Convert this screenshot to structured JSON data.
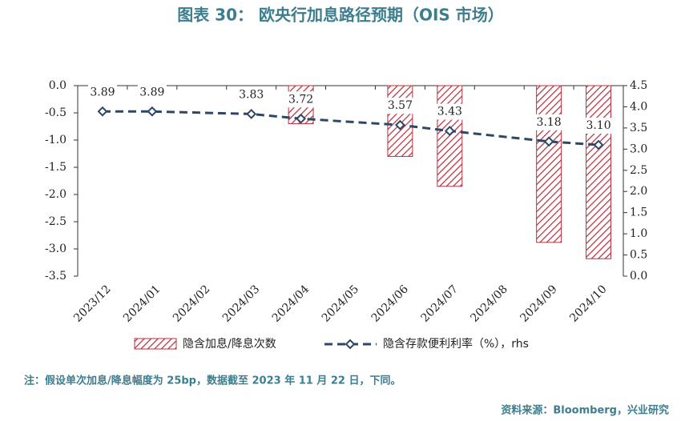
{
  "chart_data": {
    "type": "bar_line",
    "title": "图表 30：  欧央行加息路径预期（OIS 市场）",
    "categories": [
      "2023/12",
      "2024/01",
      "2024/02",
      "2024/03",
      "2024/04",
      "2024/05",
      "2024/06",
      "2024/07",
      "2024/08",
      "2024/09",
      "2024/10"
    ],
    "series": [
      {
        "name": "隐含加息/降息次数",
        "type": "bar",
        "color": "#b8323e",
        "hatch": true,
        "values": [
          null,
          null,
          null,
          null,
          -0.7,
          null,
          -1.3,
          -1.85,
          null,
          -2.88,
          -3.18
        ]
      },
      {
        "name": "隐含存款便利利率（%），rhs",
        "type": "line",
        "axis": "y2",
        "color": "#2f4766",
        "dashed": true,
        "marker": "diamond",
        "values": [
          3.89,
          3.89,
          null,
          3.83,
          3.72,
          null,
          3.57,
          3.43,
          null,
          3.18,
          3.1
        ],
        "value_labels": [
          "3.89",
          "3.89",
          null,
          "3.83",
          "3.72",
          null,
          "3.57",
          "3.43",
          null,
          "3.18",
          "3.10"
        ]
      }
    ],
    "connect_nulls": true,
    "ylim": [
      -3.5,
      0
    ],
    "yticks": [
      {
        "value": 0,
        "label": "0.0"
      },
      -0.5,
      {
        "value": -1,
        "label": "-1.0"
      },
      -1.5,
      {
        "value": -2,
        "label": "-2.0"
      },
      -2.5,
      {
        "value": -3,
        "label": "-3.0"
      },
      -3.5
    ],
    "y2lim": [
      0,
      4.5
    ],
    "y2ticks": [
      {
        "value": 0,
        "label": "0.0"
      },
      0.5,
      {
        "value": 1,
        "label": "1.0"
      },
      1.5,
      {
        "value": 2,
        "label": "2.0"
      },
      2.5,
      {
        "value": 3,
        "label": "3.0"
      },
      3.5,
      {
        "value": 4,
        "label": "4.0"
      },
      4.5
    ],
    "note": "注：假设单次加息/降息幅度为 25bp，数据截至 2023 年 11 月 22 日，下同。",
    "source": "资料来源：Bloomberg，兴业研究"
  }
}
